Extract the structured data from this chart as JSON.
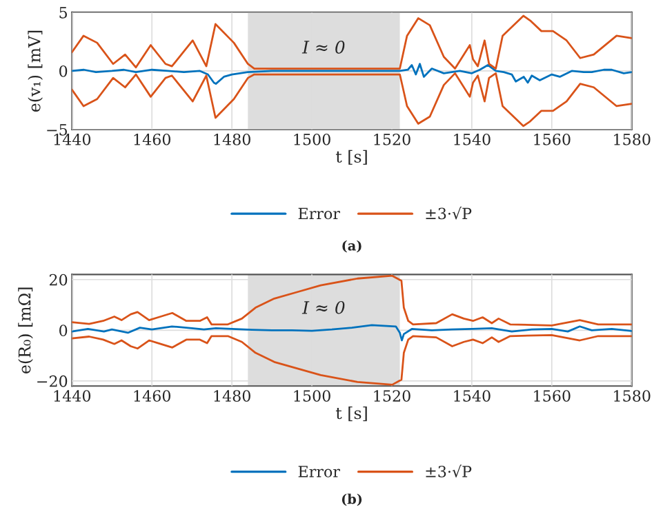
{
  "chart_data": [
    {
      "type": "line",
      "xlabel": "t [s]",
      "ylabel": "e(v₁) [mV]",
      "xlim": [
        1440,
        1580
      ],
      "xticks": [
        1440,
        1460,
        1480,
        1500,
        1520,
        1540,
        1560,
        1580
      ],
      "ylim": [
        -5,
        5
      ],
      "yticks": [
        {
          "value": -5,
          "label": "−5"
        },
        0,
        5
      ],
      "grid": true,
      "legend": "bottom",
      "line_style": "solid",
      "marker": "none",
      "bands": [
        {
          "axis": "x",
          "from": 1484,
          "to": 1522,
          "label": "I ≈ 0",
          "color": "#dddddd"
        }
      ],
      "annotations": [
        "(a)"
      ],
      "series": [
        {
          "name": "Error",
          "color": "#0072bd",
          "x": [
            1440,
            1443,
            1446,
            1450,
            1453,
            1456,
            1460,
            1464,
            1468,
            1472,
            1474,
            1475.5,
            1476,
            1478,
            1480,
            1484,
            1490,
            1500,
            1510,
            1522,
            1524,
            1525,
            1526,
            1527,
            1528,
            1530,
            1533,
            1537,
            1540,
            1542,
            1544,
            1546,
            1548,
            1550,
            1551,
            1553,
            1554,
            1555,
            1557,
            1560,
            1562,
            1565,
            1568,
            1570,
            1573,
            1575,
            1578,
            1580
          ],
          "values": [
            0,
            0.1,
            -0.1,
            0,
            0.1,
            -0.1,
            0.1,
            0,
            -0.1,
            0,
            -0.3,
            -1.0,
            -1.1,
            -0.5,
            -0.3,
            -0.1,
            0,
            0,
            0,
            0,
            0.1,
            0.5,
            -0.3,
            0.6,
            -0.5,
            0.2,
            -0.2,
            0,
            -0.2,
            0.1,
            0.5,
            0,
            -0.1,
            -0.3,
            -0.9,
            -0.5,
            -1.0,
            -0.4,
            -0.8,
            -0.3,
            -0.5,
            0,
            -0.1,
            -0.1,
            0.1,
            0.1,
            -0.2,
            -0.1
          ]
        },
        {
          "name": "±3·√P",
          "color": "#d95319",
          "x": [
            1440,
            1442.9,
            1446.3,
            1450.3,
            1453.3,
            1456,
            1459.7,
            1463.4,
            1465,
            1470.2,
            1473.6,
            1475.9,
            1480.5,
            1484,
            1485.6,
            1522,
            1523.8,
            1526.6,
            1529.5,
            1533,
            1535.8,
            1539.5,
            1540.3,
            1541.5,
            1543.2,
            1544.3,
            1546,
            1547.7,
            1552.9,
            1554.6,
            1557.4,
            1560.3,
            1563.7,
            1567.1,
            1570.5,
            1576.2,
            1580
          ],
          "values": [
            1.6,
            3.0,
            2.4,
            0.6,
            1.4,
            0.3,
            2.2,
            0.6,
            0.4,
            2.6,
            0.4,
            4.0,
            2.4,
            0.6,
            0.2,
            0.2,
            3.0,
            4.5,
            3.9,
            1.2,
            0.2,
            2.2,
            1.0,
            0.4,
            2.6,
            0.6,
            0.2,
            3.0,
            4.7,
            4.3,
            3.4,
            3.4,
            2.6,
            1.1,
            1.4,
            3.0,
            2.8
          ]
        },
        {
          "color": "#d95319",
          "x": [
            1440,
            1442.9,
            1446.3,
            1450.3,
            1453.3,
            1456,
            1459.7,
            1463.4,
            1465,
            1470.2,
            1473.6,
            1475.9,
            1480.5,
            1484,
            1485.6,
            1522,
            1523.8,
            1526.6,
            1529.5,
            1533,
            1535.8,
            1539.5,
            1540.3,
            1541.5,
            1543.2,
            1544.3,
            1546,
            1547.7,
            1552.9,
            1554.6,
            1557.4,
            1560.3,
            1563.7,
            1567.1,
            1570.5,
            1576.2,
            1580
          ],
          "values": [
            -1.6,
            -3.0,
            -2.4,
            -0.6,
            -1.4,
            -0.3,
            -2.2,
            -0.6,
            -0.4,
            -2.6,
            -0.4,
            -4.0,
            -2.4,
            -0.6,
            -0.3,
            -0.3,
            -3.0,
            -4.5,
            -3.9,
            -1.2,
            -0.2,
            -2.2,
            -1.0,
            -0.4,
            -2.6,
            -0.6,
            -0.2,
            -3.0,
            -4.7,
            -4.3,
            -3.4,
            -3.4,
            -2.6,
            -1.1,
            -1.4,
            -3.0,
            -2.8
          ]
        }
      ]
    },
    {
      "type": "line",
      "xlabel": "t [s]",
      "ylabel": "e(R₀) [mΩ]",
      "xlim": [
        1440,
        1580
      ],
      "xticks": [
        1440,
        1460,
        1480,
        1500,
        1520,
        1540,
        1560,
        1580
      ],
      "ylim": [
        -22,
        22
      ],
      "yticks": [
        {
          "value": -20,
          "label": "−20"
        },
        0,
        20
      ],
      "grid": true,
      "legend": "bottom",
      "line_style": "solid",
      "marker": "none",
      "bands": [
        {
          "axis": "x",
          "from": 1484,
          "to": 1522,
          "label": "I ≈ 0",
          "color": "#dddddd"
        }
      ],
      "annotations": [
        "(b)"
      ],
      "series": [
        {
          "name": "Error",
          "color": "#0072bd",
          "x": [
            1440,
            1444,
            1448,
            1450,
            1454,
            1457,
            1460,
            1465,
            1470,
            1473,
            1476,
            1480,
            1485,
            1490,
            1495,
            1500,
            1505,
            1510,
            1515,
            1521,
            1522,
            1522.5,
            1523,
            1525,
            1530,
            1535,
            1540,
            1545,
            1550,
            1555,
            1560,
            1564,
            1567,
            1570,
            1575,
            1580
          ],
          "values": [
            -0.5,
            0.5,
            -0.5,
            0.3,
            -1.0,
            1.0,
            0.3,
            1.5,
            0.8,
            0.3,
            0.8,
            0.5,
            0.2,
            0,
            0,
            -0.2,
            0.3,
            1.0,
            2.0,
            1.5,
            -1.0,
            -4.0,
            -1.5,
            0.5,
            0,
            0.3,
            0.5,
            0.8,
            -0.5,
            0.3,
            0.5,
            -0.5,
            1.5,
            0,
            0.5,
            -0.3
          ]
        },
        {
          "name": "±3·√P",
          "color": "#d95319",
          "x": [
            1440,
            1444.3,
            1447.8,
            1450.6,
            1452.4,
            1454.7,
            1456.4,
            1459.3,
            1461.6,
            1465.1,
            1468.6,
            1472,
            1473.8,
            1474.9,
            1479,
            1482.5,
            1485.9,
            1490.6,
            1496.4,
            1502.2,
            1511.4,
            1520.1,
            1522,
            1522.4,
            1523,
            1524.1,
            1525.3,
            1531.1,
            1535.1,
            1538,
            1540.3,
            1542.7,
            1545,
            1546.7,
            1549.6,
            1560,
            1567,
            1571.6,
            1580
          ],
          "values": [
            3.2,
            2.5,
            3.7,
            5.4,
            4.0,
            6.3,
            7.2,
            4.0,
            5.1,
            6.8,
            3.7,
            3.7,
            5.1,
            2.3,
            2.3,
            4.6,
            8.9,
            12.5,
            15.1,
            17.7,
            20.4,
            21.5,
            null,
            19.5,
            8.9,
            3.7,
            2.3,
            2.8,
            6.3,
            4.6,
            3.7,
            5.1,
            2.8,
            4.6,
            2.3,
            1.9,
            4.0,
            2.3,
            2.3
          ]
        },
        {
          "color": "#d95319",
          "x": [
            1440,
            1444.3,
            1447.8,
            1450.6,
            1452.4,
            1454.7,
            1456.4,
            1459.3,
            1461.6,
            1465.1,
            1468.6,
            1472,
            1473.8,
            1474.9,
            1479,
            1482.5,
            1485.9,
            1490.6,
            1496.4,
            1502.2,
            1511.4,
            1520.1,
            1522,
            1522.4,
            1523,
            1524.1,
            1525.3,
            1531.1,
            1535.1,
            1538,
            1540.3,
            1542.7,
            1545,
            1546.7,
            1549.6,
            1560,
            1567,
            1571.6,
            1580
          ],
          "values": [
            -3.2,
            -2.5,
            -3.7,
            -5.4,
            -4.0,
            -6.3,
            -7.2,
            -4.0,
            -5.1,
            -6.8,
            -3.7,
            -3.7,
            -5.1,
            -2.3,
            -2.3,
            -4.6,
            -8.9,
            -12.5,
            -15.1,
            -17.7,
            -20.4,
            -21.5,
            null,
            -19.5,
            -8.9,
            -3.7,
            -2.3,
            -2.8,
            -6.3,
            -4.6,
            -3.7,
            -5.1,
            -2.8,
            -4.6,
            -2.3,
            -1.9,
            -4.0,
            -2.3,
            -2.3
          ]
        }
      ]
    }
  ]
}
